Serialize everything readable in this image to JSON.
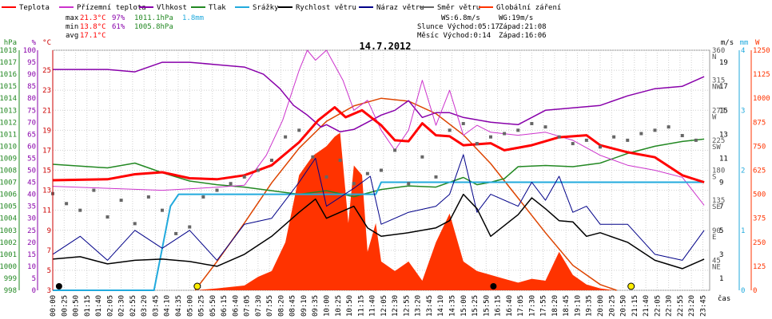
{
  "chart_data": {
    "type": "line",
    "title": "14.7.2012",
    "legend": [
      {
        "name": "Teplota",
        "color": "#ff0000"
      },
      {
        "name": "Přízemní teplota",
        "color": "#cc33cc"
      },
      {
        "name": "Vlhkost",
        "color": "#8800aa"
      },
      {
        "name": "Tlak",
        "color": "#228822"
      },
      {
        "name": "Srážky",
        "color": "#22aadd"
      },
      {
        "name": "Rychlost větru",
        "color": "#000000"
      },
      {
        "name": "Náraz větru",
        "color": "#000088"
      },
      {
        "name": "Směr větru",
        "color": "#666666"
      },
      {
        "name": "Globální záření",
        "color": "#ff3300"
      }
    ],
    "stats": {
      "max": {
        "label": "max",
        "temp": "21.3°C",
        "hum": "97%",
        "press": "1011.1hPa",
        "rain": "1.8mm"
      },
      "min": {
        "label": "min",
        "temp": "13.8°C",
        "hum": "61%",
        "press": "1005.8hPa"
      },
      "avg": {
        "label": "avg",
        "temp": "17.1°C"
      }
    },
    "info": {
      "ws": "WS:6.8m/s",
      "wg": "WG:19m/s",
      "sun": "Slunce Východ:05:17",
      "sun_set": "Západ:21:08",
      "moon": "Měsíc  Východ:0:14",
      "moon_set": "Západ:16:06"
    },
    "axes": {
      "hpa": {
        "label": "hPa",
        "ticks": [
          "1018",
          "1017",
          "1016",
          "1015",
          "1014",
          "1013",
          "1012",
          "1011",
          "1010",
          "1009",
          "1008",
          "1007",
          "1006",
          "1005",
          "1004",
          "1003",
          "1002",
          "1001",
          "1000",
          "999",
          "998"
        ]
      },
      "pct": {
        "label": "%",
        "ticks": [
          "100",
          "95",
          "90",
          "85",
          "80",
          "75",
          "70",
          "65",
          "60",
          "55",
          "50",
          "45",
          "40",
          "35",
          "30",
          "25",
          "20",
          "15",
          "10",
          "5",
          "0"
        ]
      },
      "degc": {
        "label": "°C",
        "ticks": [
          "25",
          "23",
          "21",
          "19",
          "17",
          "15",
          "13",
          "11",
          "9",
          "7",
          "5",
          "3"
        ]
      },
      "ms": {
        "label": "m/s",
        "ticks": [
          "19",
          "17",
          "15",
          "13",
          "11",
          "9",
          "7",
          "5",
          "3",
          "1"
        ]
      },
      "dir": {
        "ticks": [
          "360",
          "N",
          "315",
          "NW",
          "270",
          "W",
          "225",
          "SW",
          "180",
          "S",
          "135",
          "SE",
          "90",
          "E",
          "45",
          "NE"
        ]
      },
      "mm": {
        "label": "mm",
        "ticks": [
          "4",
          "3",
          "2",
          "1",
          "0"
        ]
      },
      "wm2": {
        "label": "W",
        "ticks": [
          "1250",
          "1125",
          "1000",
          "875",
          "750",
          "625",
          "500",
          "375",
          "250",
          "125",
          "0"
        ]
      },
      "x_label": "čas",
      "x_ticks": [
        "00:00",
        "00:25",
        "00:50",
        "01:15",
        "01:40",
        "02:05",
        "02:30",
        "02:55",
        "03:20",
        "03:45",
        "04:10",
        "04:35",
        "05:00",
        "05:25",
        "05:50",
        "06:15",
        "06:40",
        "07:05",
        "07:30",
        "07:55",
        "08:20",
        "08:45",
        "09:10",
        "09:35",
        "10:00",
        "10:25",
        "10:50",
        "11:15",
        "11:40",
        "12:05",
        "12:30",
        "12:55",
        "13:20",
        "13:45",
        "14:10",
        "14:35",
        "15:00",
        "15:25",
        "15:50",
        "16:15",
        "16:40",
        "17:05",
        "17:30",
        "17:55",
        "18:20",
        "18:45",
        "19:10",
        "19:35",
        "20:00",
        "20:25",
        "20:50",
        "21:15",
        "21:40",
        "22:05",
        "22:30",
        "22:55",
        "23:20",
        "23:45"
      ]
    },
    "series": {
      "temp_c": [
        [
          0,
          14.0
        ],
        [
          2,
          14.1
        ],
        [
          3,
          14.6
        ],
        [
          4,
          14.8
        ],
        [
          5,
          14.2
        ],
        [
          6,
          14.1
        ],
        [
          7,
          14.5
        ],
        [
          8,
          15.5
        ],
        [
          9,
          17.8
        ],
        [
          9.7,
          20.0
        ],
        [
          10.3,
          21.3
        ],
        [
          10.7,
          20.3
        ],
        [
          11.3,
          21.0
        ],
        [
          12,
          19.5
        ],
        [
          12.5,
          18.0
        ],
        [
          13,
          17.9
        ],
        [
          13.5,
          19.7
        ],
        [
          14,
          18.5
        ],
        [
          14.5,
          18.4
        ],
        [
          15,
          17.5
        ],
        [
          16,
          17.7
        ],
        [
          16.5,
          17.0
        ],
        [
          17.5,
          17.5
        ],
        [
          18.5,
          18.3
        ],
        [
          19.5,
          18.5
        ],
        [
          20,
          17.5
        ],
        [
          21,
          16.8
        ],
        [
          22,
          16.3
        ],
        [
          23,
          14.5
        ],
        [
          23.8,
          13.8
        ]
      ],
      "ground_c": [
        [
          0,
          13.4
        ],
        [
          2,
          13.2
        ],
        [
          4,
          13.0
        ],
        [
          6,
          13.3
        ],
        [
          7,
          13.5
        ],
        [
          7.8,
          16.5
        ],
        [
          8.4,
          20.0
        ],
        [
          9,
          25.0
        ],
        [
          9.3,
          27.0
        ],
        [
          9.6,
          26.0
        ],
        [
          10,
          27.0
        ],
        [
          10.3,
          25.5
        ],
        [
          10.6,
          24.0
        ],
        [
          11,
          21.0
        ],
        [
          11.5,
          22.0
        ],
        [
          12,
          19.0
        ],
        [
          12.5,
          17.0
        ],
        [
          13,
          19.0
        ],
        [
          13.5,
          24.0
        ],
        [
          14,
          19.5
        ],
        [
          14.5,
          23.0
        ],
        [
          15,
          18.5
        ],
        [
          15.5,
          19.5
        ],
        [
          16,
          18.8
        ],
        [
          17,
          18.5
        ],
        [
          18,
          18.8
        ],
        [
          19,
          18.0
        ],
        [
          20,
          16.5
        ],
        [
          21,
          15.5
        ],
        [
          22,
          15.0
        ],
        [
          23,
          14.3
        ],
        [
          23.8,
          11.5
        ]
      ],
      "humidity_pct": [
        [
          0,
          92
        ],
        [
          1,
          92
        ],
        [
          2,
          92
        ],
        [
          3,
          91
        ],
        [
          4,
          95
        ],
        [
          5,
          95
        ],
        [
          6,
          94
        ],
        [
          7,
          93
        ],
        [
          7.7,
          90
        ],
        [
          8.3,
          84
        ],
        [
          8.8,
          77
        ],
        [
          9.3,
          73
        ],
        [
          9.8,
          68
        ],
        [
          10,
          69
        ],
        [
          10.5,
          66
        ],
        [
          11,
          67
        ],
        [
          11.5,
          70
        ],
        [
          12,
          73
        ],
        [
          12.5,
          75
        ],
        [
          13,
          79
        ],
        [
          13.5,
          72
        ],
        [
          14,
          74
        ],
        [
          14.5,
          74
        ],
        [
          15,
          72
        ],
        [
          16,
          70
        ],
        [
          17,
          69
        ],
        [
          18,
          75
        ],
        [
          19,
          76
        ],
        [
          20,
          77
        ],
        [
          21,
          81
        ],
        [
          22,
          84
        ],
        [
          23,
          85
        ],
        [
          23.8,
          89
        ]
      ],
      "pressure_hpa": [
        [
          0,
          1008.5
        ],
        [
          2,
          1008.2
        ],
        [
          3,
          1008.6
        ],
        [
          4,
          1007.8
        ],
        [
          5,
          1007.1
        ],
        [
          6,
          1006.8
        ],
        [
          7,
          1006.6
        ],
        [
          8,
          1006.3
        ],
        [
          9,
          1006.0
        ],
        [
          10,
          1006.3
        ],
        [
          11,
          1005.8
        ],
        [
          12,
          1006.4
        ],
        [
          13,
          1006.7
        ],
        [
          14,
          1006.6
        ],
        [
          15,
          1007.4
        ],
        [
          15.5,
          1006.8
        ],
        [
          16,
          1007.0
        ],
        [
          16.5,
          1007.3
        ],
        [
          17,
          1008.3
        ],
        [
          18,
          1008.4
        ],
        [
          19,
          1008.3
        ],
        [
          20,
          1008.6
        ],
        [
          21,
          1009.4
        ],
        [
          22,
          1010.0
        ],
        [
          23,
          1010.4
        ],
        [
          23.8,
          1010.6
        ]
      ],
      "rain_mm": [
        [
          0,
          0
        ],
        [
          3.7,
          0
        ],
        [
          4.0,
          0.7
        ],
        [
          4.3,
          1.4
        ],
        [
          4.6,
          1.6
        ],
        [
          11.8,
          1.6
        ],
        [
          12.0,
          1.8
        ],
        [
          23.8,
          1.8
        ]
      ],
      "wind_ms": [
        [
          0,
          2.6
        ],
        [
          1,
          2.8
        ],
        [
          2,
          2.2
        ],
        [
          3,
          2.5
        ],
        [
          4,
          2.6
        ],
        [
          5,
          2.4
        ],
        [
          6,
          2.0
        ],
        [
          7,
          3.0
        ],
        [
          8,
          4.5
        ],
        [
          9,
          6.5
        ],
        [
          9.6,
          7.6
        ],
        [
          10,
          6.0
        ],
        [
          11,
          7.0
        ],
        [
          11.5,
          5.2
        ],
        [
          12,
          4.5
        ],
        [
          13,
          4.8
        ],
        [
          14,
          5.2
        ],
        [
          14.5,
          5.8
        ],
        [
          15,
          8.0
        ],
        [
          15.5,
          6.8
        ],
        [
          16,
          4.5
        ],
        [
          17,
          6.3
        ],
        [
          17.5,
          7.7
        ],
        [
          18,
          6.8
        ],
        [
          18.5,
          5.8
        ],
        [
          19,
          5.7
        ],
        [
          19.5,
          4.5
        ],
        [
          20,
          4.8
        ],
        [
          21,
          4.0
        ],
        [
          22,
          2.5
        ],
        [
          23,
          1.8
        ],
        [
          23.8,
          2.6
        ]
      ],
      "gust_ms": [
        [
          0,
          3.0
        ],
        [
          1,
          4.5
        ],
        [
          2,
          2.5
        ],
        [
          3,
          5.0
        ],
        [
          4,
          3.5
        ],
        [
          5,
          5.0
        ],
        [
          6,
          2.5
        ],
        [
          7,
          5.5
        ],
        [
          8,
          6.0
        ],
        [
          9,
          9.0
        ],
        [
          9.6,
          11.0
        ],
        [
          10,
          7.0
        ],
        [
          11,
          8.5
        ],
        [
          11.6,
          9.5
        ],
        [
          12,
          5.5
        ],
        [
          13,
          6.5
        ],
        [
          14,
          7.0
        ],
        [
          14.5,
          8.0
        ],
        [
          15,
          11.3
        ],
        [
          15.5,
          6.5
        ],
        [
          16,
          8.0
        ],
        [
          17,
          7.0
        ],
        [
          17.5,
          9.0
        ],
        [
          18,
          7.5
        ],
        [
          18.5,
          9.5
        ],
        [
          19,
          6.5
        ],
        [
          19.5,
          7.0
        ],
        [
          20,
          5.5
        ],
        [
          21,
          5.5
        ],
        [
          22,
          3.0
        ],
        [
          23,
          2.5
        ],
        [
          23.8,
          5.0
        ]
      ],
      "dir_deg": [
        [
          0,
          145
        ],
        [
          0.5,
          130
        ],
        [
          1,
          120
        ],
        [
          1.5,
          150
        ],
        [
          2,
          110
        ],
        [
          2.5,
          135
        ],
        [
          3,
          100
        ],
        [
          3.5,
          140
        ],
        [
          4,
          120
        ],
        [
          4.5,
          85
        ],
        [
          5,
          95
        ],
        [
          5.5,
          140
        ],
        [
          6,
          150
        ],
        [
          6.5,
          160
        ],
        [
          7,
          170
        ],
        [
          7.5,
          180
        ],
        [
          8,
          195
        ],
        [
          8.5,
          230
        ],
        [
          9,
          240
        ],
        [
          9.5,
          200
        ],
        [
          10,
          170
        ],
        [
          10.5,
          195
        ],
        [
          11,
          160
        ],
        [
          11.5,
          175
        ],
        [
          12,
          180
        ],
        [
          12.5,
          210
        ],
        [
          13,
          160
        ],
        [
          13.5,
          200
        ],
        [
          14,
          170
        ],
        [
          14.5,
          240
        ],
        [
          15,
          250
        ],
        [
          15.5,
          220
        ],
        [
          16,
          230
        ],
        [
          16.5,
          235
        ],
        [
          17,
          240
        ],
        [
          17.5,
          250
        ],
        [
          18,
          245
        ],
        [
          18.5,
          230
        ],
        [
          19,
          220
        ],
        [
          19.5,
          225
        ],
        [
          20,
          215
        ],
        [
          20.5,
          230
        ],
        [
          21,
          225
        ],
        [
          21.5,
          235
        ],
        [
          22,
          240
        ],
        [
          22.5,
          245
        ],
        [
          23,
          232
        ],
        [
          23.5,
          225
        ]
      ],
      "radiation_wm2": [
        [
          0,
          0
        ],
        [
          5.2,
          0
        ],
        [
          6,
          10
        ],
        [
          7,
          25
        ],
        [
          7.5,
          70
        ],
        [
          8,
          100
        ],
        [
          8.5,
          250
        ],
        [
          9,
          600
        ],
        [
          9.5,
          700
        ],
        [
          10,
          750
        ],
        [
          10.3,
          800
        ],
        [
          10.5,
          820
        ],
        [
          10.8,
          350
        ],
        [
          11,
          650
        ],
        [
          11.3,
          600
        ],
        [
          11.5,
          200
        ],
        [
          11.8,
          350
        ],
        [
          12,
          150
        ],
        [
          12.5,
          100
        ],
        [
          13,
          150
        ],
        [
          13.5,
          50
        ],
        [
          14,
          250
        ],
        [
          14.5,
          400
        ],
        [
          15,
          150
        ],
        [
          15.5,
          100
        ],
        [
          16,
          80
        ],
        [
          16.5,
          60
        ],
        [
          17,
          40
        ],
        [
          17.5,
          60
        ],
        [
          18,
          50
        ],
        [
          18.5,
          200
        ],
        [
          19,
          80
        ],
        [
          19.5,
          30
        ],
        [
          20,
          10
        ],
        [
          20.5,
          0
        ],
        [
          23.8,
          0
        ]
      ],
      "clear_sky_wm2": [
        [
          5.2,
          0
        ],
        [
          6,
          150
        ],
        [
          7,
          350
        ],
        [
          8,
          560
        ],
        [
          9,
          740
        ],
        [
          10,
          880
        ],
        [
          11,
          960
        ],
        [
          12,
          1000
        ],
        [
          13,
          985
        ],
        [
          14,
          920
        ],
        [
          15,
          810
        ],
        [
          16,
          660
        ],
        [
          17,
          480
        ],
        [
          18,
          300
        ],
        [
          19,
          130
        ],
        [
          20,
          30
        ],
        [
          20.6,
          0
        ]
      ]
    },
    "markers": {
      "sunrise": 5.28,
      "sunset": 21.13,
      "moonrise": 0.23,
      "moonset": 16.1
    },
    "grid": true
  }
}
